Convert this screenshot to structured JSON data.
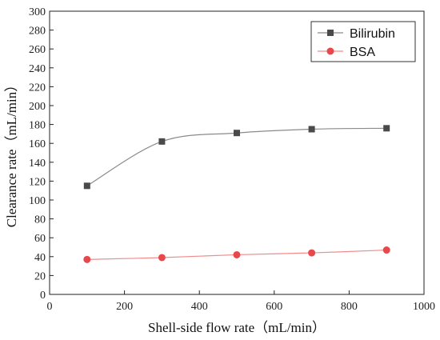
{
  "chart_data": {
    "type": "line",
    "xlabel": "Shell-side flow rate（mL/min）",
    "ylabel": "Clearance rate（mL/min）",
    "xlim": [
      0,
      1000
    ],
    "ylim": [
      0,
      300
    ],
    "x_ticks": [
      0,
      200,
      400,
      600,
      800,
      1000
    ],
    "y_ticks": [
      0,
      20,
      40,
      60,
      80,
      100,
      120,
      140,
      160,
      180,
      200,
      220,
      240,
      260,
      280,
      300
    ],
    "grid": false,
    "legend_position": "top-right",
    "series": [
      {
        "name": "Bilirubin",
        "marker": "square",
        "color": "#4a4a4a",
        "line_color": "#8a8a8a",
        "x": [
          100,
          300,
          500,
          700,
          900
        ],
        "y": [
          115,
          162,
          171,
          175,
          176
        ]
      },
      {
        "name": "BSA",
        "marker": "circle",
        "color": "#e8474b",
        "line_color": "#f08c8c",
        "x": [
          100,
          300,
          500,
          700,
          900
        ],
        "y": [
          37,
          39,
          42,
          44,
          47
        ]
      }
    ]
  }
}
